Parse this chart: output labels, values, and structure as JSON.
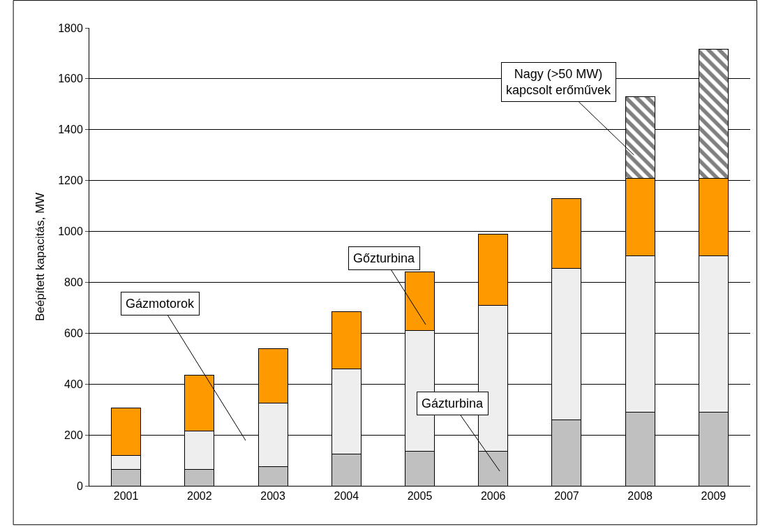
{
  "chart_data": {
    "type": "bar",
    "stacked": true,
    "ylabel": "Beépített kapacitás, MW",
    "categories": [
      "2001",
      "2002",
      "2003",
      "2004",
      "2005",
      "2006",
      "2007",
      "2008",
      "2009"
    ],
    "series": [
      {
        "color": "#c0c0c0",
        "values": [
          65,
          65,
          75,
          125,
          135,
          135,
          260,
          290,
          290
        ]
      },
      {
        "color": "#eeeeee",
        "values": [
          55,
          150,
          250,
          335,
          475,
          575,
          595,
          615,
          615
        ]
      },
      {
        "color": "#ff9900",
        "values": [
          185,
          220,
          215,
          225,
          230,
          280,
          275,
          305,
          305
        ]
      },
      {
        "color": "#000000",
        "values": [
          null,
          null,
          null,
          null,
          null,
          null,
          null,
          320,
          505
        ]
      }
    ],
    "ylim": [
      0,
      1800
    ],
    "yticks": [
      0,
      200,
      400,
      600,
      800,
      1000,
      1200,
      1400,
      1600,
      1800
    ],
    "grid": "y",
    "annotations": [
      "Gázmotorok",
      "Gőzturbina",
      "Gázturbina",
      "Nagy (>50 MW)\nkapcsolt erőművek"
    ]
  }
}
